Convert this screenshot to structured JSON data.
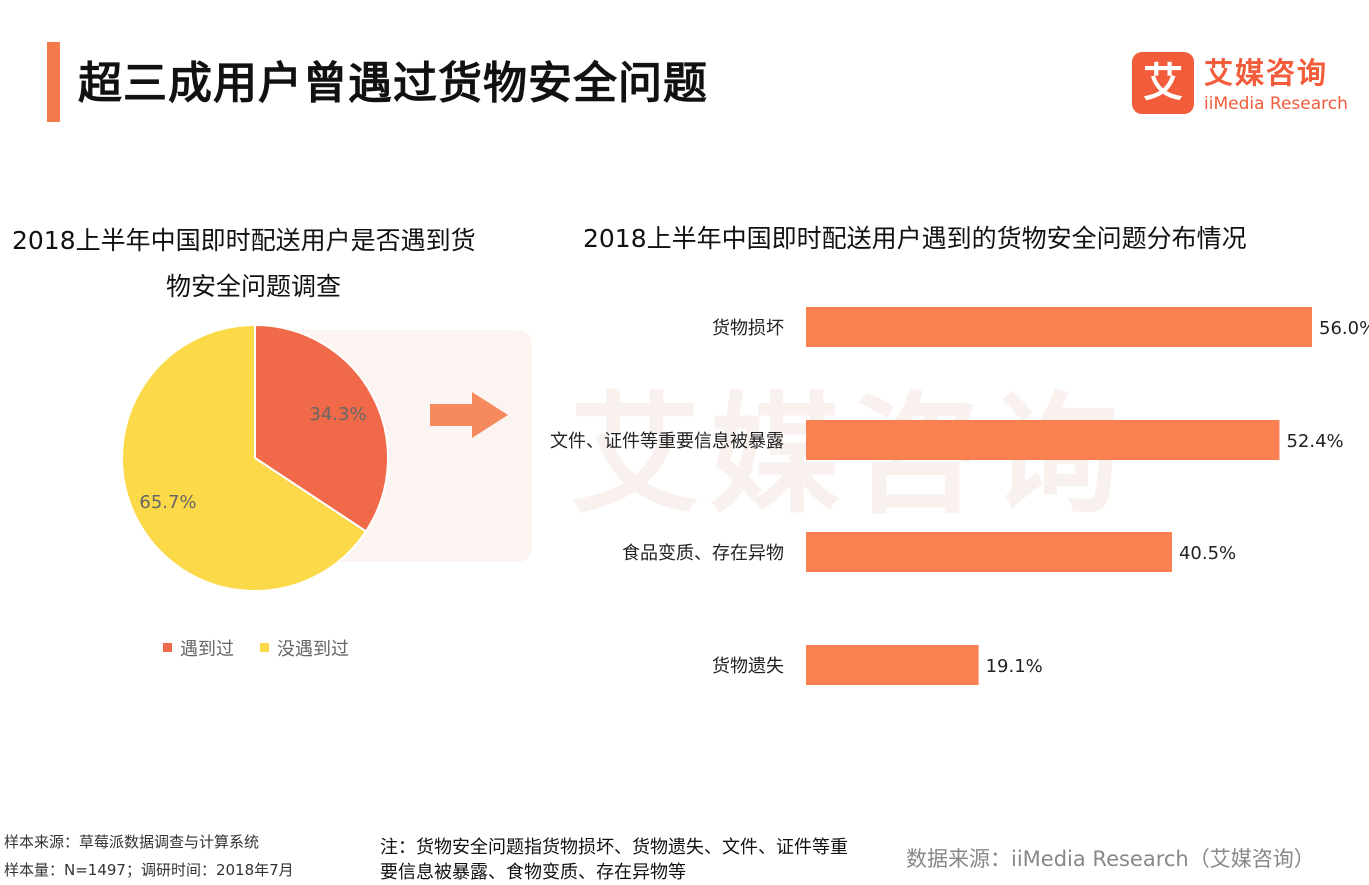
{
  "header": {
    "title": "超三成用户曾遇过货物安全问题",
    "accent_color": "#f47a4e"
  },
  "logo": {
    "mark": "艾",
    "name_cn": "艾媒咨询",
    "name_en": "iiMedia Research",
    "color": "#f25c3a"
  },
  "chart_data": [
    {
      "type": "pie",
      "title_line1": "2018上半年中国即时配送用户是否遇到货",
      "title_line2": "物安全问题调查",
      "slices": [
        {
          "name": "遇到过",
          "value": 34.3,
          "label": "34.3%",
          "color": "#f06a4a"
        },
        {
          "name": "没遇到过",
          "value": 65.7,
          "label": "65.7%",
          "color": "#fbd949"
        }
      ],
      "legend_position": "bottom"
    },
    {
      "type": "bar",
      "orientation": "horizontal",
      "title": "2018上半年中国即时配送用户遇到的货物安全问题分布情况",
      "categories": [
        "货物损坏",
        "文件、证件等重要信息被暴露",
        "食品变质、存在异物",
        "货物遗失"
      ],
      "values": [
        56.0,
        52.4,
        40.5,
        19.1
      ],
      "labels": [
        "56.0%",
        "52.4%",
        "40.5%",
        "19.1%"
      ],
      "xlim": [
        0,
        56
      ],
      "color": "#fb8052",
      "grid": false
    }
  ],
  "footer": {
    "sample_source": "样本来源：草莓派数据调查与计算系统",
    "sample_size": "样本量：N=1497；调研时间：2018年7月",
    "note_line1": "注：货物安全问题指货物损坏、货物遗失、文件、证件等重",
    "note_line2": "要信息被暴露、食物变质、存在异物等",
    "data_source": "数据来源：iiMedia Research（艾媒咨询）"
  },
  "watermark_text": "艾媒咨询"
}
